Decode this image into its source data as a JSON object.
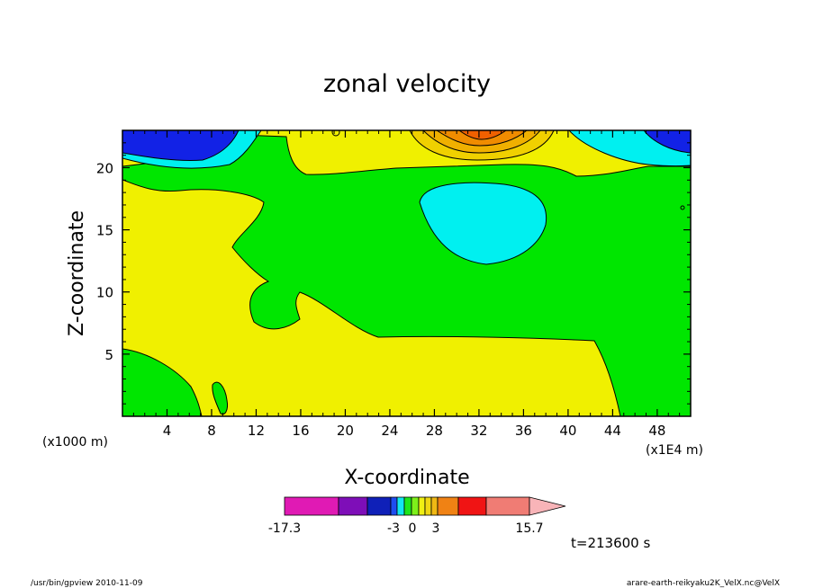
{
  "chart_data": {
    "type": "contour",
    "title": "zonal velocity",
    "xlabel": "X-coordinate",
    "ylabel": "Z-coordinate",
    "x_unit_left": "(x1000 m)",
    "x_unit_right": "(x1E4 m)",
    "x_ticks": [
      "4",
      "8",
      "12",
      "16",
      "20",
      "24",
      "28",
      "32",
      "36",
      "40",
      "44",
      "48"
    ],
    "y_ticks": [
      "5",
      "10",
      "15",
      "20"
    ],
    "xlim": [
      0,
      51
    ],
    "ylim": [
      0,
      23
    ],
    "colorbar": {
      "min_label": "-17.3",
      "max_label": "15.7",
      "tick_labels": [
        "-3",
        "0",
        "3"
      ],
      "colors": [
        "#e01ab4",
        "#7e0eb8",
        "#0f20b8",
        "#1e4df0",
        "#13e6f0",
        "#1de61b",
        "#7df01a",
        "#f0f013",
        "#f0d813",
        "#f0b814",
        "#f08214",
        "#f01414",
        "#f07c74",
        "#f8b4b8"
      ]
    },
    "regions": [
      {
        "name": "dark-blue-top-left",
        "level": "strong negative",
        "color": "#1222e6"
      },
      {
        "name": "cyan-top-left",
        "level": "negative",
        "color": "#00f0f0"
      },
      {
        "name": "cyan-center-blob",
        "level": "negative",
        "color": "#00f0f0"
      },
      {
        "name": "green-middle-band",
        "level": "near zero",
        "color": "#00e600"
      },
      {
        "name": "yellow-background",
        "level": "weak positive",
        "color": "#f0f000"
      },
      {
        "name": "orange-top-center",
        "level": "positive",
        "color": "#f08c00"
      },
      {
        "name": "blue-top-right",
        "level": "strong negative",
        "color": "#1222e6"
      }
    ]
  },
  "footer": {
    "timestamp": "t=213600 s",
    "left_note": "/usr/bin/gpview   2010-11-09",
    "right_note": "arare-earth-reikyaku2K_VelX.nc@VelX"
  }
}
